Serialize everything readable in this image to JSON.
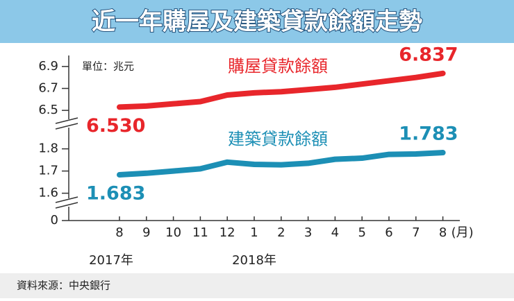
{
  "chart_data": {
    "type": "line",
    "title": "近一年購屋及建築貸款餘額走勢",
    "unit": "單位：兆元",
    "source": "資料來源：中央銀行",
    "categories": [
      "8",
      "9",
      "10",
      "11",
      "12",
      "1",
      "2",
      "3",
      "4",
      "5",
      "6",
      "7",
      "8"
    ],
    "x_unit": "(月)",
    "year_labels": [
      "2017年",
      "2018年"
    ],
    "ylim": [
      6.4,
      7.0
    ],
    "yticks": [
      6.5,
      6.7,
      6.9
    ],
    "y2lim": [
      1.58,
      1.87
    ],
    "y2ticks": [
      1.6,
      1.7,
      1.8
    ],
    "base_ticks": [
      0
    ],
    "series": [
      {
        "name": "購屋貸款餘額",
        "color": "#e8262b",
        "values": [
          6.53,
          6.54,
          6.56,
          6.58,
          6.64,
          6.66,
          6.67,
          6.69,
          6.71,
          6.74,
          6.77,
          6.8,
          6.837
        ],
        "value_labels": [
          "6.530",
          null,
          null,
          null,
          null,
          null,
          null,
          null,
          null,
          null,
          null,
          null,
          "6.837"
        ]
      },
      {
        "name": "建築貸款餘額",
        "color": "#1c8fb5",
        "axis": "y2",
        "values": [
          1.683,
          1.69,
          1.7,
          1.71,
          1.74,
          1.73,
          1.728,
          1.735,
          1.753,
          1.758,
          1.775,
          1.777,
          1.783
        ],
        "value_labels": [
          "1.683",
          null,
          null,
          null,
          null,
          null,
          null,
          null,
          null,
          null,
          null,
          null,
          "1.783"
        ]
      }
    ]
  }
}
